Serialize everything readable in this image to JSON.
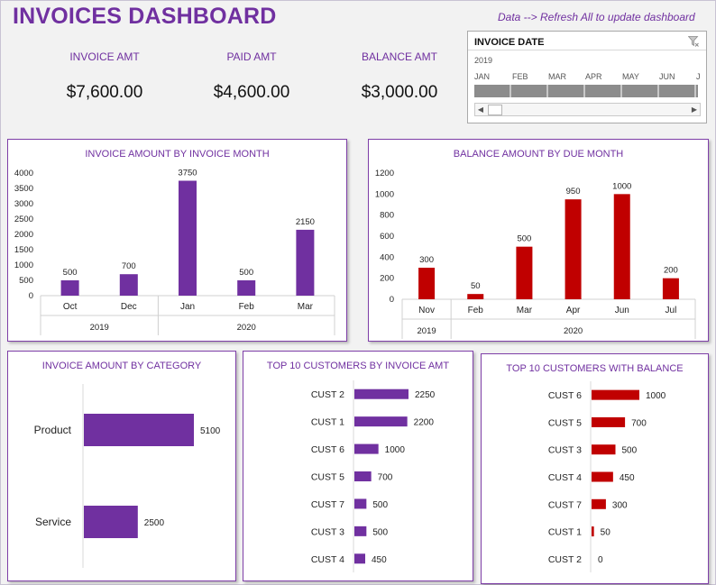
{
  "header": {
    "title": "INVOICES DASHBOARD",
    "hint": "Data --> Refresh All to update dashboard"
  },
  "kpis": [
    {
      "label": "INVOICE AMT",
      "value": "$7,600.00"
    },
    {
      "label": "PAID AMT",
      "value": "$4,600.00"
    },
    {
      "label": "BALANCE AMT",
      "value": "$3,000.00"
    }
  ],
  "slicer": {
    "title": "INVOICE DATE",
    "year": "2019",
    "months": [
      "JAN",
      "FEB",
      "MAR",
      "APR",
      "MAY",
      "JUN",
      "J"
    ],
    "filter_icon": "clear-filter-icon",
    "prev_icon": "triangle-left-icon",
    "next_icon": "triangle-right-icon"
  },
  "colors": {
    "purple": "#7030a0",
    "red": "#c00000"
  },
  "chart_data": [
    {
      "type": "bar",
      "title": "INVOICE AMOUNT BY INVOICE MONTH",
      "categories": [
        "Oct",
        "Dec",
        "Jan",
        "Feb",
        "Mar"
      ],
      "groups": [
        {
          "label": "2019",
          "count": 2
        },
        {
          "label": "2020",
          "count": 3
        }
      ],
      "values": [
        500,
        700,
        3750,
        500,
        2150
      ],
      "ylim": [
        0,
        4000
      ],
      "yticks": [
        0,
        500,
        1000,
        1500,
        2000,
        2500,
        3000,
        3500,
        4000
      ],
      "color": "#7030a0"
    },
    {
      "type": "bar",
      "title": "BALANCE AMOUNT BY DUE MONTH",
      "categories": [
        "Nov",
        "Feb",
        "Mar",
        "Apr",
        "Jun",
        "Jul"
      ],
      "groups": [
        {
          "label": "2019",
          "count": 1
        },
        {
          "label": "2020",
          "count": 5
        }
      ],
      "values": [
        300,
        50,
        500,
        950,
        1000,
        200
      ],
      "ylim": [
        0,
        1200
      ],
      "yticks": [
        0,
        200,
        400,
        600,
        800,
        1000,
        1200
      ],
      "color": "#c00000"
    },
    {
      "type": "bar",
      "orientation": "horizontal",
      "title": "INVOICE AMOUNT BY CATEGORY",
      "categories": [
        "Product",
        "Service"
      ],
      "values": [
        5100,
        2500
      ],
      "color": "#7030a0"
    },
    {
      "type": "bar",
      "orientation": "horizontal",
      "title": "TOP 10 CUSTOMERS BY INVOICE AMT",
      "categories": [
        "CUST 2",
        "CUST 1",
        "CUST 6",
        "CUST 5",
        "CUST 7",
        "CUST 3",
        "CUST 4"
      ],
      "values": [
        2250,
        2200,
        1000,
        700,
        500,
        500,
        450
      ],
      "color": "#7030a0"
    },
    {
      "type": "bar",
      "orientation": "horizontal",
      "title": "TOP 10 CUSTOMERS WITH BALANCE",
      "categories": [
        "CUST 6",
        "CUST 5",
        "CUST 3",
        "CUST 4",
        "CUST 7",
        "CUST 1",
        "CUST 2"
      ],
      "values": [
        1000,
        700,
        500,
        450,
        300,
        50,
        0
      ],
      "color": "#c00000"
    }
  ]
}
